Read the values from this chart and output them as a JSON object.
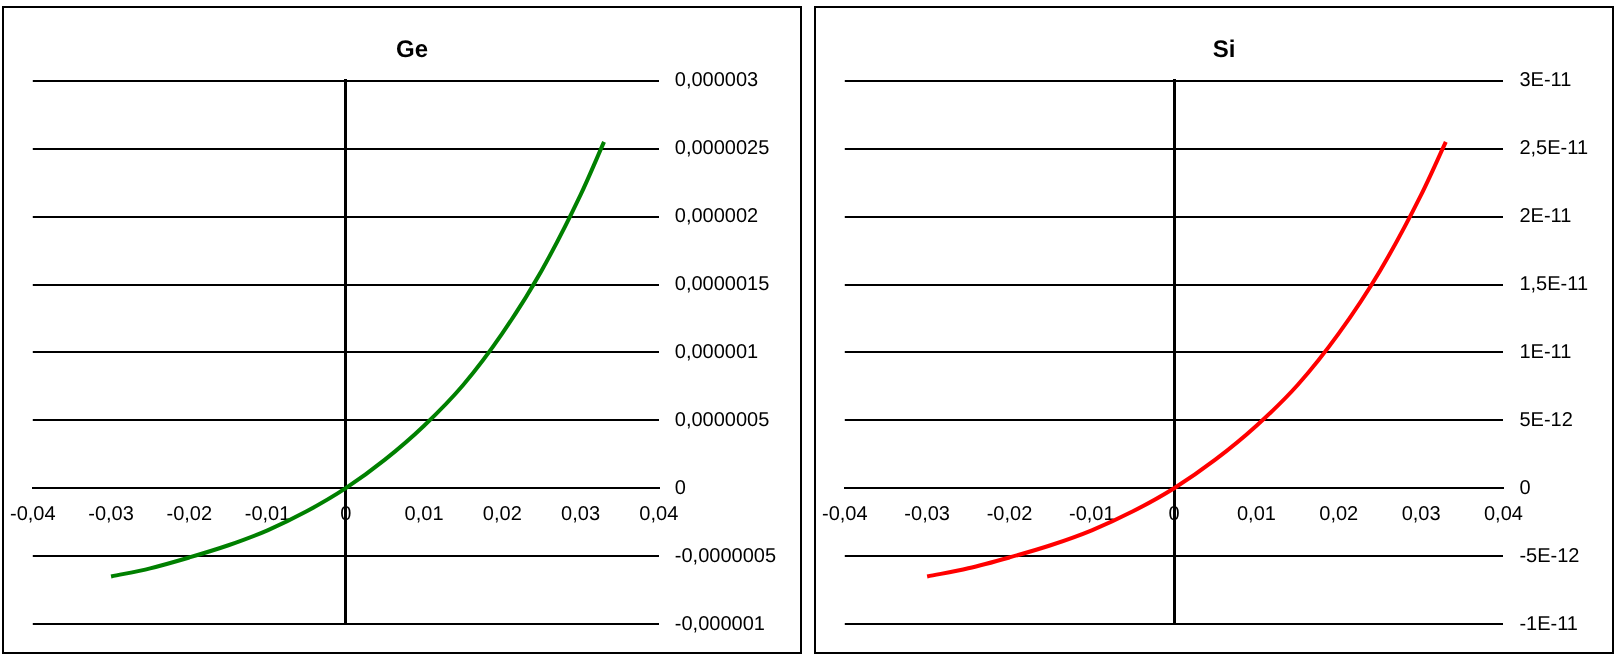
{
  "chart_data": [
    {
      "type": "line",
      "title": "Ge",
      "x": [
        -0.03,
        -0.025,
        -0.02,
        -0.015,
        -0.01,
        -0.005,
        0,
        0.005,
        0.01,
        0.015,
        0.02,
        0.025,
        0.03,
        0.033
      ],
      "series": [
        {
          "color": "#008000",
          "values": [
            -6.5e-07,
            -5.9e-07,
            -5.1e-07,
            -4.2e-07,
            -3.1e-07,
            -1.7e-07,
            0,
            2.1e-07,
            4.6e-07,
            7.6e-07,
            1.14e-06,
            1.6e-06,
            2.16e-06,
            2.55e-06
          ]
        }
      ],
      "xlim": [
        -0.04,
        0.04
      ],
      "xticks": [
        {
          "value": -0.04,
          "label": "-0,04"
        },
        {
          "value": -0.03,
          "label": "-0,03"
        },
        {
          "value": -0.02,
          "label": "-0,02"
        },
        {
          "value": -0.01,
          "label": "-0,01"
        },
        {
          "value": 0,
          "label": "0"
        },
        {
          "value": 0.01,
          "label": "0,01"
        },
        {
          "value": 0.02,
          "label": "0,02"
        },
        {
          "value": 0.03,
          "label": "0,03"
        },
        {
          "value": 0.04,
          "label": "0,04"
        }
      ],
      "ylim": [
        -1e-06,
        3e-06
      ],
      "yticks": [
        {
          "value": -1e-06,
          "label": "-0,000001"
        },
        {
          "value": -5e-07,
          "label": "-0,0000005"
        },
        {
          "value": 0,
          "label": "0"
        },
        {
          "value": 5e-07,
          "label": "0,0000005"
        },
        {
          "value": 1e-06,
          "label": "0,000001"
        },
        {
          "value": 1.5e-06,
          "label": "0,0000015"
        },
        {
          "value": 2e-06,
          "label": "0,000002"
        },
        {
          "value": 2.5e-06,
          "label": "0,0000025"
        },
        {
          "value": 3e-06,
          "label": "0,000003"
        }
      ],
      "grid": "y",
      "legend": false,
      "marker": "none",
      "line_style": "solid"
    },
    {
      "type": "line",
      "title": "Si",
      "x": [
        -0.03,
        -0.025,
        -0.02,
        -0.015,
        -0.01,
        -0.005,
        0,
        0.005,
        0.01,
        0.015,
        0.02,
        0.025,
        0.03,
        0.033
      ],
      "series": [
        {
          "color": "#ff0000",
          "values": [
            -6.5e-12,
            -5.9e-12,
            -5.1e-12,
            -4.2e-12,
            -3.1e-12,
            -1.7e-12,
            0,
            2.1e-12,
            4.6e-12,
            7.6e-12,
            1.14e-11,
            1.6e-11,
            2.16e-11,
            2.55e-11
          ]
        }
      ],
      "xlim": [
        -0.04,
        0.04
      ],
      "xticks": [
        {
          "value": -0.04,
          "label": "-0,04"
        },
        {
          "value": -0.03,
          "label": "-0,03"
        },
        {
          "value": -0.02,
          "label": "-0,02"
        },
        {
          "value": -0.01,
          "label": "-0,01"
        },
        {
          "value": 0,
          "label": "0"
        },
        {
          "value": 0.01,
          "label": "0,01"
        },
        {
          "value": 0.02,
          "label": "0,02"
        },
        {
          "value": 0.03,
          "label": "0,03"
        },
        {
          "value": 0.04,
          "label": "0,04"
        }
      ],
      "ylim": [
        -1e-11,
        3e-11
      ],
      "yticks": [
        {
          "value": -1e-11,
          "label": "-1E-11"
        },
        {
          "value": -5e-12,
          "label": "-5E-12"
        },
        {
          "value": 0,
          "label": "0"
        },
        {
          "value": 5e-12,
          "label": "5E-12"
        },
        {
          "value": 1e-11,
          "label": "1E-11"
        },
        {
          "value": 1.5e-11,
          "label": "1,5E-11"
        },
        {
          "value": 2e-11,
          "label": "2E-11"
        },
        {
          "value": 2.5e-11,
          "label": "2,5E-11"
        },
        {
          "value": 3e-11,
          "label": "3E-11"
        }
      ],
      "grid": "y",
      "legend": false,
      "marker": "none",
      "line_style": "solid"
    }
  ]
}
